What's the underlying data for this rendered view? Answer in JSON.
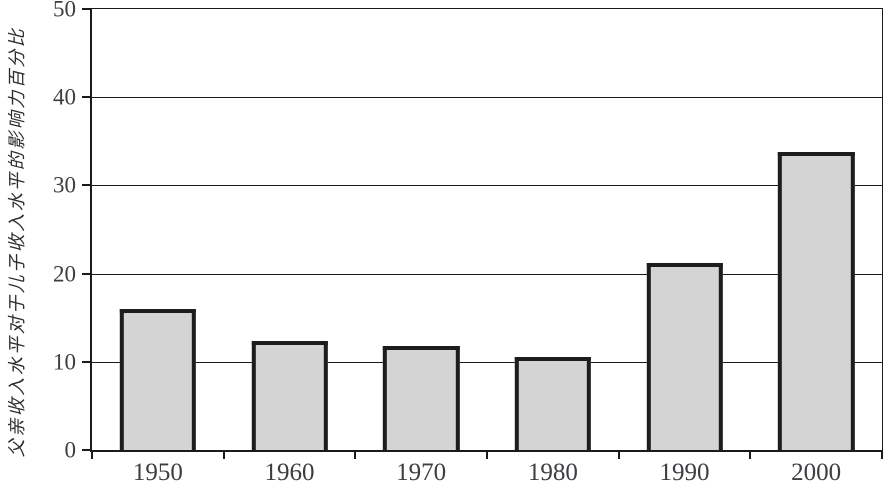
{
  "chart_data": {
    "type": "bar",
    "categories": [
      "1950",
      "1960",
      "1970",
      "1980",
      "1990",
      "2000"
    ],
    "values": [
      16,
      12.4,
      11.8,
      10.6,
      21.2,
      33.8
    ],
    "title": "",
    "xlabel": "",
    "ylabel": "父亲收入水平对于儿子收入水平的影响力百分比",
    "ylim": [
      0,
      50
    ],
    "yticks": [
      0,
      10,
      20,
      30,
      40,
      50
    ],
    "grid": true,
    "legend": false,
    "colors": {
      "bar_fill": "#d4d4d4",
      "bar_border": "#1d1d1d",
      "grid": "#1a1a1a",
      "axis": "#1a1a1a",
      "label": "#3d3d42"
    }
  }
}
